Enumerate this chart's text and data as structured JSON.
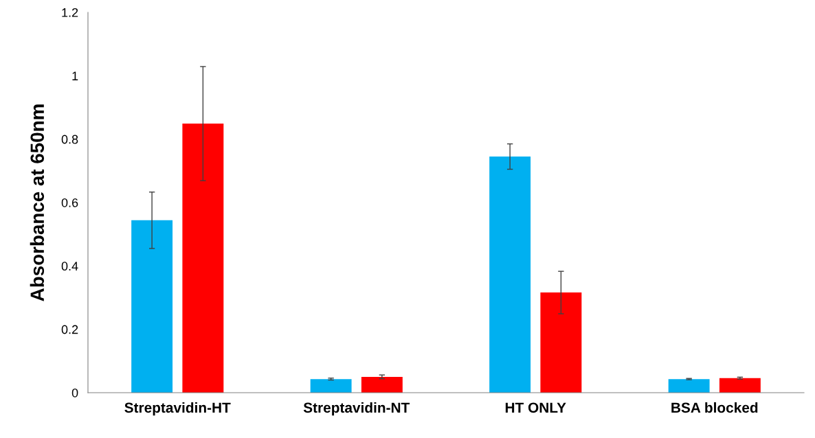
{
  "chart_data": {
    "type": "bar",
    "ylabel": "Absorbance at 650nm",
    "categories": [
      "Streptavidin-HT",
      "Streptavidin-NT",
      "HT ONLY",
      "BSA blocked"
    ],
    "series": [
      {
        "color": "#00b0f0",
        "values": [
          0.544,
          0.043,
          0.745,
          0.043
        ],
        "errors": [
          0.089,
          0.003,
          0.04,
          0.002
        ]
      },
      {
        "color": "#ff0000",
        "values": [
          0.849,
          0.05,
          0.316,
          0.046
        ],
        "errors": [
          0.18,
          0.006,
          0.067,
          0.003
        ]
      }
    ],
    "ylim": [
      0,
      1.2
    ],
    "yticks": [
      {
        "value": 0,
        "label": "0"
      },
      0.2,
      0.4,
      0.6,
      0.8,
      {
        "value": 1,
        "label": "1"
      },
      1.2
    ],
    "grid": false,
    "legend": false
  }
}
